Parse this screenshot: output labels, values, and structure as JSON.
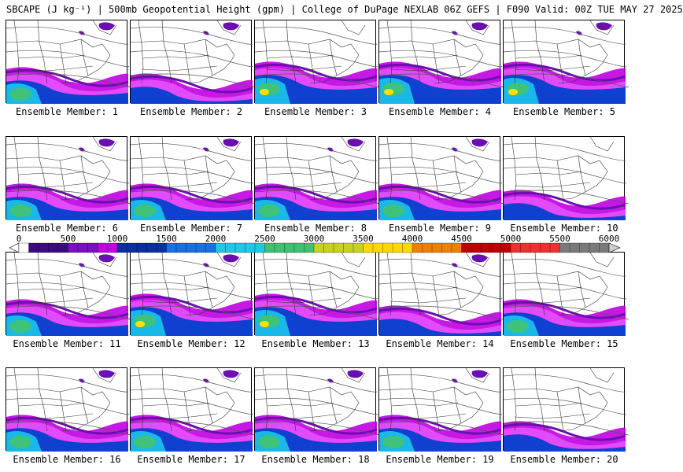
{
  "header": {
    "title": "SBCAPE (J kg⁻¹) | 500mb Geopotential Height (gpm) | College of DuPage NEXLAB 06Z GEFS | F090 Valid: 00Z TUE MAY 27 2025"
  },
  "colorbar": {
    "tick_labels": [
      "0",
      "500",
      "1000",
      "1500",
      "2000",
      "2500",
      "3000",
      "3500",
      "4000",
      "4500",
      "5000",
      "5500",
      "6000"
    ],
    "min": 0,
    "max": 6000,
    "step": 100,
    "colors": {
      "purple": "#6a0fb0",
      "magenta": "#c000e0",
      "pink": "#e858ff",
      "blue": "#1040d0",
      "cyan": "#19b8e8",
      "green": "#3fc37a",
      "yellowgreen": "#9cd02a",
      "yellow": "#ffe000",
      "red": "#d01010",
      "gray": "#9a9a9a"
    }
  },
  "panels": [
    {
      "label": "Ensemble Member: 1"
    },
    {
      "label": "Ensemble Member: 2"
    },
    {
      "label": "Ensemble Member: 3"
    },
    {
      "label": "Ensemble Member: 4"
    },
    {
      "label": "Ensemble Member: 5"
    },
    {
      "label": "Ensemble Member: 6"
    },
    {
      "label": "Ensemble Member: 7"
    },
    {
      "label": "Ensemble Member: 8"
    },
    {
      "label": "Ensemble Member: 9"
    },
    {
      "label": "Ensemble Member: 10"
    },
    {
      "label": "Ensemble Member: 11"
    },
    {
      "label": "Ensemble Member: 12"
    },
    {
      "label": "Ensemble Member: 13"
    },
    {
      "label": "Ensemble Member: 14"
    },
    {
      "label": "Ensemble Member: 15"
    },
    {
      "label": "Ensemble Member: 16"
    },
    {
      "label": "Ensemble Member: 17"
    },
    {
      "label": "Ensemble Member: 18"
    },
    {
      "label": "Ensemble Member: 19"
    },
    {
      "label": "Ensemble Member: 20"
    }
  ]
}
